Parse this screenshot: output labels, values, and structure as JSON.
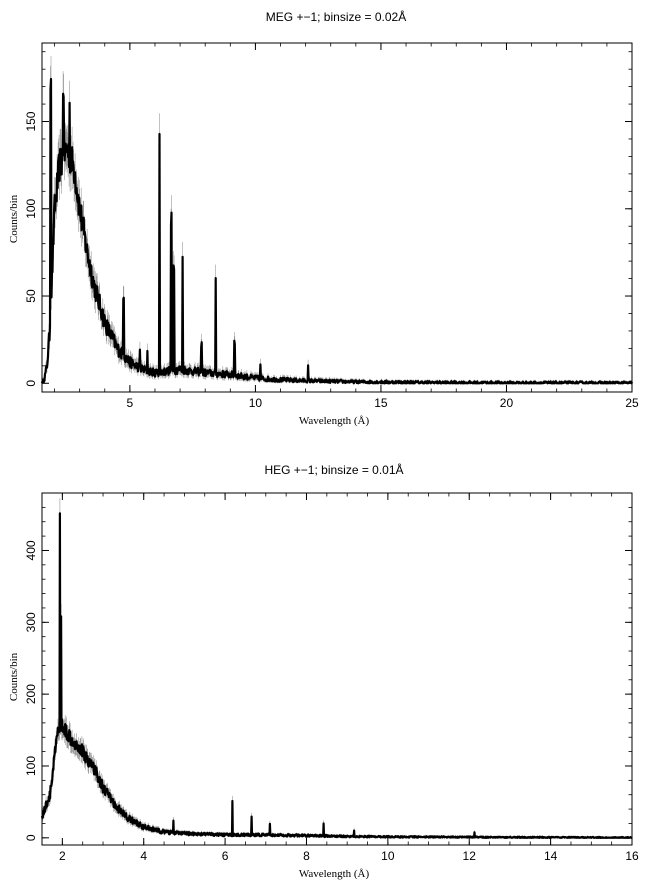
{
  "chart_data": [
    {
      "type": "line",
      "title": "MEG +−1; binsize = 0.02Å",
      "xlabel": "Wavelength (Å)",
      "ylabel": "Counts/bin",
      "xlim": [
        1.5,
        25
      ],
      "ylim": [
        -5,
        195
      ],
      "xticks": [
        5,
        10,
        15,
        20,
        25
      ],
      "yticks": [
        0,
        50,
        100,
        150
      ],
      "grid": false,
      "series": [
        {
          "style": "black histogram with grey error bars",
          "continuum": [
            [
              1.5,
              0
            ],
            [
              1.6,
              3
            ],
            [
              1.7,
              10
            ],
            [
              1.8,
              28
            ],
            [
              1.9,
              60
            ],
            [
              2.0,
              100
            ],
            [
              2.2,
              125
            ],
            [
              2.5,
              135
            ],
            [
              2.8,
              122
            ],
            [
              3.0,
              100
            ],
            [
              3.3,
              75
            ],
            [
              3.6,
              55
            ],
            [
              4.0,
              35
            ],
            [
              4.5,
              20
            ],
            [
              5.0,
              12
            ],
            [
              5.5,
              8
            ],
            [
              6.0,
              6
            ],
            [
              7.0,
              8
            ],
            [
              8.0,
              6
            ],
            [
              9.0,
              5
            ],
            [
              10.0,
              3
            ],
            [
              11.0,
              2
            ],
            [
              12.0,
              1.5
            ],
            [
              14.0,
              0.8
            ],
            [
              17.0,
              0.4
            ],
            [
              20.0,
              0.2
            ],
            [
              25.0,
              0.1
            ]
          ],
          "lines": [
            {
              "x": 1.85,
              "y": 180
            },
            {
              "x": 2.35,
              "y": 172
            },
            {
              "x": 2.6,
              "y": 160
            },
            {
              "x": 4.75,
              "y": 54
            },
            {
              "x": 5.4,
              "y": 20
            },
            {
              "x": 5.7,
              "y": 18
            },
            {
              "x": 6.18,
              "y": 142
            },
            {
              "x": 6.65,
              "y": 90
            },
            {
              "x": 6.75,
              "y": 72
            },
            {
              "x": 7.1,
              "y": 72
            },
            {
              "x": 7.85,
              "y": 25
            },
            {
              "x": 8.42,
              "y": 63
            },
            {
              "x": 9.17,
              "y": 25
            },
            {
              "x": 10.2,
              "y": 11
            },
            {
              "x": 12.1,
              "y": 8
            }
          ]
        }
      ]
    },
    {
      "type": "line",
      "title": "HEG +−1; binsize = 0.01Å",
      "xlabel": "Wavelength (Å)",
      "ylabel": "Counts/bin",
      "xlim": [
        1.5,
        16
      ],
      "ylim": [
        -10,
        480
      ],
      "xticks": [
        2,
        4,
        6,
        8,
        10,
        12,
        14,
        16
      ],
      "yticks": [
        0,
        100,
        200,
        300,
        400
      ],
      "grid": false,
      "series": [
        {
          "style": "black histogram with grey error bars",
          "continuum": [
            [
              1.5,
              30
            ],
            [
              1.6,
              45
            ],
            [
              1.7,
              60
            ],
            [
              1.8,
              110
            ],
            [
              1.9,
              150
            ],
            [
              2.0,
              155
            ],
            [
              2.2,
              140
            ],
            [
              2.5,
              120
            ],
            [
              2.8,
              95
            ],
            [
              3.0,
              70
            ],
            [
              3.3,
              45
            ],
            [
              3.6,
              28
            ],
            [
              4.0,
              15
            ],
            [
              4.5,
              8
            ],
            [
              5.0,
              6
            ],
            [
              6.0,
              4
            ],
            [
              7.0,
              4
            ],
            [
              8.0,
              3
            ],
            [
              9.0,
              2
            ],
            [
              10.0,
              1.5
            ],
            [
              12.0,
              1
            ],
            [
              14.0,
              0.5
            ],
            [
              16.0,
              0.3
            ]
          ],
          "lines": [
            {
              "x": 1.94,
              "y": 448
            },
            {
              "x": 1.97,
              "y": 300
            },
            {
              "x": 4.73,
              "y": 22
            },
            {
              "x": 6.18,
              "y": 58
            },
            {
              "x": 6.65,
              "y": 32
            },
            {
              "x": 7.1,
              "y": 18
            },
            {
              "x": 8.42,
              "y": 20
            },
            {
              "x": 9.17,
              "y": 8
            },
            {
              "x": 12.13,
              "y": 6
            }
          ]
        }
      ]
    }
  ]
}
